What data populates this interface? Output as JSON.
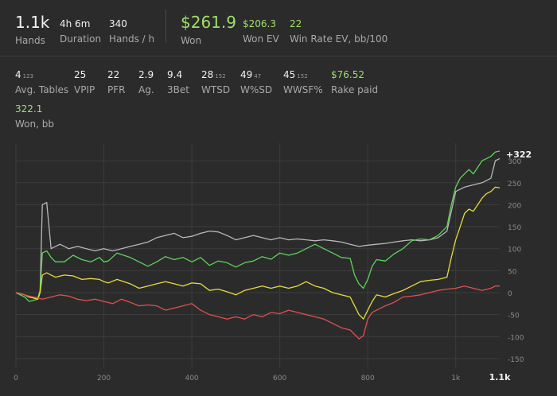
{
  "summary": {
    "hands": {
      "value": "1.1k",
      "label": "Hands"
    },
    "duration": {
      "value": "4h 6m",
      "label": "Duration"
    },
    "hands_per_hour": {
      "value": "340",
      "label": "Hands / h"
    },
    "won": {
      "value": "$261.9",
      "label": "Won"
    },
    "won_ev": {
      "value": "$206.3",
      "label": "Won EV"
    },
    "win_rate_ev": {
      "value": "22",
      "label": "Win Rate EV, bb/100"
    }
  },
  "stats": [
    {
      "value": "4",
      "sub": "123",
      "label": "Avg. Tables"
    },
    {
      "value": "25",
      "sub": "",
      "label": "VPIP"
    },
    {
      "value": "22",
      "sub": "",
      "label": "PFR"
    },
    {
      "value": "2.9",
      "sub": "",
      "label": "Ag."
    },
    {
      "value": "9.4",
      "sub": "",
      "label": "3Bet"
    },
    {
      "value": "28",
      "sub": "152",
      "label": "WTSD"
    },
    {
      "value": "49",
      "sub": "47",
      "label": "W%SD"
    },
    {
      "value": "45",
      "sub": "152",
      "label": "WWSF%"
    },
    {
      "value": "$76.52",
      "sub": "",
      "label": "Rake paid"
    }
  ],
  "won_bb": {
    "value": "322.1",
    "label": "Won, bb"
  },
  "chart_data": {
    "type": "line",
    "x_ticks": [
      "0",
      "200",
      "400",
      "600",
      "800",
      "1k",
      "1.1k"
    ],
    "x_tick_values": [
      0,
      200,
      400,
      600,
      800,
      1000,
      1100
    ],
    "y_ticks": [
      "300",
      "250",
      "200",
      "150",
      "100",
      "50",
      "0",
      "-50",
      "-100",
      "-150"
    ],
    "y_tick_values": [
      300,
      250,
      200,
      150,
      100,
      50,
      0,
      -50,
      -100,
      -150
    ],
    "xlim": [
      0,
      1100
    ],
    "ylim": [
      -170,
      340
    ],
    "end_label": "+322",
    "colors": {
      "green": "#5fd35a",
      "yellow": "#e6dc3a",
      "red": "#e05050",
      "gray": "#b8b8b8",
      "grid": "#3c3c3c",
      "tick": "#8a8a8a"
    },
    "series": [
      {
        "color": "green",
        "points": [
          [
            0,
            0
          ],
          [
            20,
            -10
          ],
          [
            30,
            -20
          ],
          [
            50,
            -15
          ],
          [
            55,
            5
          ],
          [
            60,
            90
          ],
          [
            70,
            95
          ],
          [
            80,
            80
          ],
          [
            90,
            70
          ],
          [
            110,
            70
          ],
          [
            130,
            85
          ],
          [
            150,
            75
          ],
          [
            170,
            70
          ],
          [
            190,
            80
          ],
          [
            200,
            70
          ],
          [
            210,
            72
          ],
          [
            230,
            90
          ],
          [
            260,
            80
          ],
          [
            280,
            70
          ],
          [
            300,
            60
          ],
          [
            320,
            70
          ],
          [
            340,
            82
          ],
          [
            360,
            75
          ],
          [
            380,
            80
          ],
          [
            400,
            70
          ],
          [
            420,
            80
          ],
          [
            440,
            62
          ],
          [
            460,
            72
          ],
          [
            480,
            68
          ],
          [
            500,
            58
          ],
          [
            520,
            68
          ],
          [
            540,
            72
          ],
          [
            560,
            82
          ],
          [
            580,
            76
          ],
          [
            600,
            90
          ],
          [
            620,
            85
          ],
          [
            640,
            90
          ],
          [
            660,
            100
          ],
          [
            680,
            110
          ],
          [
            700,
            100
          ],
          [
            720,
            90
          ],
          [
            740,
            80
          ],
          [
            760,
            78
          ],
          [
            770,
            40
          ],
          [
            780,
            20
          ],
          [
            790,
            10
          ],
          [
            800,
            30
          ],
          [
            810,
            60
          ],
          [
            820,
            75
          ],
          [
            840,
            72
          ],
          [
            860,
            88
          ],
          [
            880,
            100
          ],
          [
            900,
            118
          ],
          [
            920,
            122
          ],
          [
            940,
            120
          ],
          [
            960,
            130
          ],
          [
            980,
            150
          ],
          [
            990,
            200
          ],
          [
            1000,
            240
          ],
          [
            1010,
            260
          ],
          [
            1020,
            270
          ],
          [
            1030,
            280
          ],
          [
            1040,
            270
          ],
          [
            1050,
            285
          ],
          [
            1060,
            300
          ],
          [
            1070,
            305
          ],
          [
            1080,
            310
          ],
          [
            1090,
            320
          ],
          [
            1100,
            322
          ]
        ]
      },
      {
        "color": "yellow",
        "points": [
          [
            0,
            0
          ],
          [
            20,
            -5
          ],
          [
            30,
            -10
          ],
          [
            50,
            -15
          ],
          [
            55,
            0
          ],
          [
            60,
            40
          ],
          [
            70,
            45
          ],
          [
            80,
            40
          ],
          [
            90,
            35
          ],
          [
            110,
            40
          ],
          [
            130,
            38
          ],
          [
            150,
            30
          ],
          [
            170,
            32
          ],
          [
            190,
            30
          ],
          [
            200,
            25
          ],
          [
            210,
            22
          ],
          [
            230,
            30
          ],
          [
            260,
            20
          ],
          [
            280,
            10
          ],
          [
            300,
            15
          ],
          [
            320,
            20
          ],
          [
            340,
            25
          ],
          [
            360,
            20
          ],
          [
            380,
            15
          ],
          [
            400,
            22
          ],
          [
            420,
            20
          ],
          [
            440,
            5
          ],
          [
            460,
            8
          ],
          [
            480,
            2
          ],
          [
            500,
            -5
          ],
          [
            520,
            5
          ],
          [
            540,
            10
          ],
          [
            560,
            15
          ],
          [
            580,
            10
          ],
          [
            600,
            15
          ],
          [
            620,
            10
          ],
          [
            640,
            15
          ],
          [
            660,
            25
          ],
          [
            680,
            15
          ],
          [
            700,
            10
          ],
          [
            720,
            0
          ],
          [
            740,
            -5
          ],
          [
            760,
            -10
          ],
          [
            770,
            -30
          ],
          [
            780,
            -50
          ],
          [
            790,
            -60
          ],
          [
            800,
            -40
          ],
          [
            810,
            -20
          ],
          [
            820,
            -5
          ],
          [
            840,
            -10
          ],
          [
            860,
            -2
          ],
          [
            880,
            5
          ],
          [
            900,
            15
          ],
          [
            920,
            25
          ],
          [
            940,
            28
          ],
          [
            960,
            30
          ],
          [
            980,
            35
          ],
          [
            990,
            80
          ],
          [
            1000,
            120
          ],
          [
            1010,
            150
          ],
          [
            1020,
            180
          ],
          [
            1030,
            190
          ],
          [
            1040,
            185
          ],
          [
            1050,
            200
          ],
          [
            1060,
            215
          ],
          [
            1070,
            225
          ],
          [
            1080,
            230
          ],
          [
            1090,
            240
          ],
          [
            1100,
            238
          ]
        ]
      },
      {
        "color": "red",
        "points": [
          [
            0,
            0
          ],
          [
            20,
            -5
          ],
          [
            30,
            -8
          ],
          [
            50,
            -12
          ],
          [
            60,
            -15
          ],
          [
            80,
            -10
          ],
          [
            100,
            -5
          ],
          [
            120,
            -8
          ],
          [
            140,
            -15
          ],
          [
            160,
            -18
          ],
          [
            180,
            -15
          ],
          [
            200,
            -20
          ],
          [
            220,
            -25
          ],
          [
            240,
            -15
          ],
          [
            260,
            -22
          ],
          [
            280,
            -30
          ],
          [
            300,
            -28
          ],
          [
            320,
            -30
          ],
          [
            340,
            -40
          ],
          [
            360,
            -35
          ],
          [
            380,
            -30
          ],
          [
            400,
            -25
          ],
          [
            420,
            -40
          ],
          [
            440,
            -50
          ],
          [
            460,
            -55
          ],
          [
            480,
            -60
          ],
          [
            500,
            -55
          ],
          [
            520,
            -60
          ],
          [
            540,
            -50
          ],
          [
            560,
            -55
          ],
          [
            580,
            -45
          ],
          [
            600,
            -48
          ],
          [
            620,
            -40
          ],
          [
            640,
            -45
          ],
          [
            660,
            -50
          ],
          [
            680,
            -55
          ],
          [
            700,
            -60
          ],
          [
            720,
            -70
          ],
          [
            740,
            -80
          ],
          [
            760,
            -85
          ],
          [
            770,
            -95
          ],
          [
            780,
            -105
          ],
          [
            790,
            -98
          ],
          [
            800,
            -60
          ],
          [
            810,
            -45
          ],
          [
            820,
            -40
          ],
          [
            840,
            -30
          ],
          [
            860,
            -22
          ],
          [
            880,
            -10
          ],
          [
            900,
            -8
          ],
          [
            920,
            -5
          ],
          [
            940,
            0
          ],
          [
            960,
            5
          ],
          [
            980,
            8
          ],
          [
            1000,
            10
          ],
          [
            1020,
            15
          ],
          [
            1040,
            10
          ],
          [
            1060,
            5
          ],
          [
            1080,
            10
          ],
          [
            1090,
            15
          ],
          [
            1100,
            15
          ]
        ]
      },
      {
        "color": "gray",
        "points": [
          [
            0,
            0
          ],
          [
            20,
            -5
          ],
          [
            30,
            -10
          ],
          [
            50,
            -12
          ],
          [
            55,
            5
          ],
          [
            60,
            200
          ],
          [
            70,
            205
          ],
          [
            80,
            100
          ],
          [
            100,
            110
          ],
          [
            120,
            100
          ],
          [
            140,
            105
          ],
          [
            160,
            100
          ],
          [
            180,
            95
          ],
          [
            200,
            100
          ],
          [
            220,
            95
          ],
          [
            240,
            100
          ],
          [
            260,
            105
          ],
          [
            280,
            110
          ],
          [
            300,
            115
          ],
          [
            320,
            125
          ],
          [
            340,
            130
          ],
          [
            360,
            135
          ],
          [
            380,
            125
          ],
          [
            400,
            128
          ],
          [
            420,
            135
          ],
          [
            440,
            140
          ],
          [
            460,
            138
          ],
          [
            480,
            130
          ],
          [
            500,
            120
          ],
          [
            520,
            125
          ],
          [
            540,
            130
          ],
          [
            560,
            125
          ],
          [
            580,
            120
          ],
          [
            600,
            125
          ],
          [
            620,
            120
          ],
          [
            640,
            122
          ],
          [
            660,
            120
          ],
          [
            680,
            118
          ],
          [
            700,
            120
          ],
          [
            720,
            118
          ],
          [
            740,
            115
          ],
          [
            760,
            110
          ],
          [
            780,
            105
          ],
          [
            800,
            108
          ],
          [
            820,
            110
          ],
          [
            840,
            112
          ],
          [
            860,
            115
          ],
          [
            880,
            118
          ],
          [
            900,
            120
          ],
          [
            920,
            118
          ],
          [
            940,
            120
          ],
          [
            960,
            125
          ],
          [
            980,
            140
          ],
          [
            1000,
            230
          ],
          [
            1020,
            240
          ],
          [
            1040,
            245
          ],
          [
            1060,
            250
          ],
          [
            1080,
            260
          ],
          [
            1090,
            300
          ],
          [
            1100,
            305
          ]
        ]
      }
    ]
  }
}
